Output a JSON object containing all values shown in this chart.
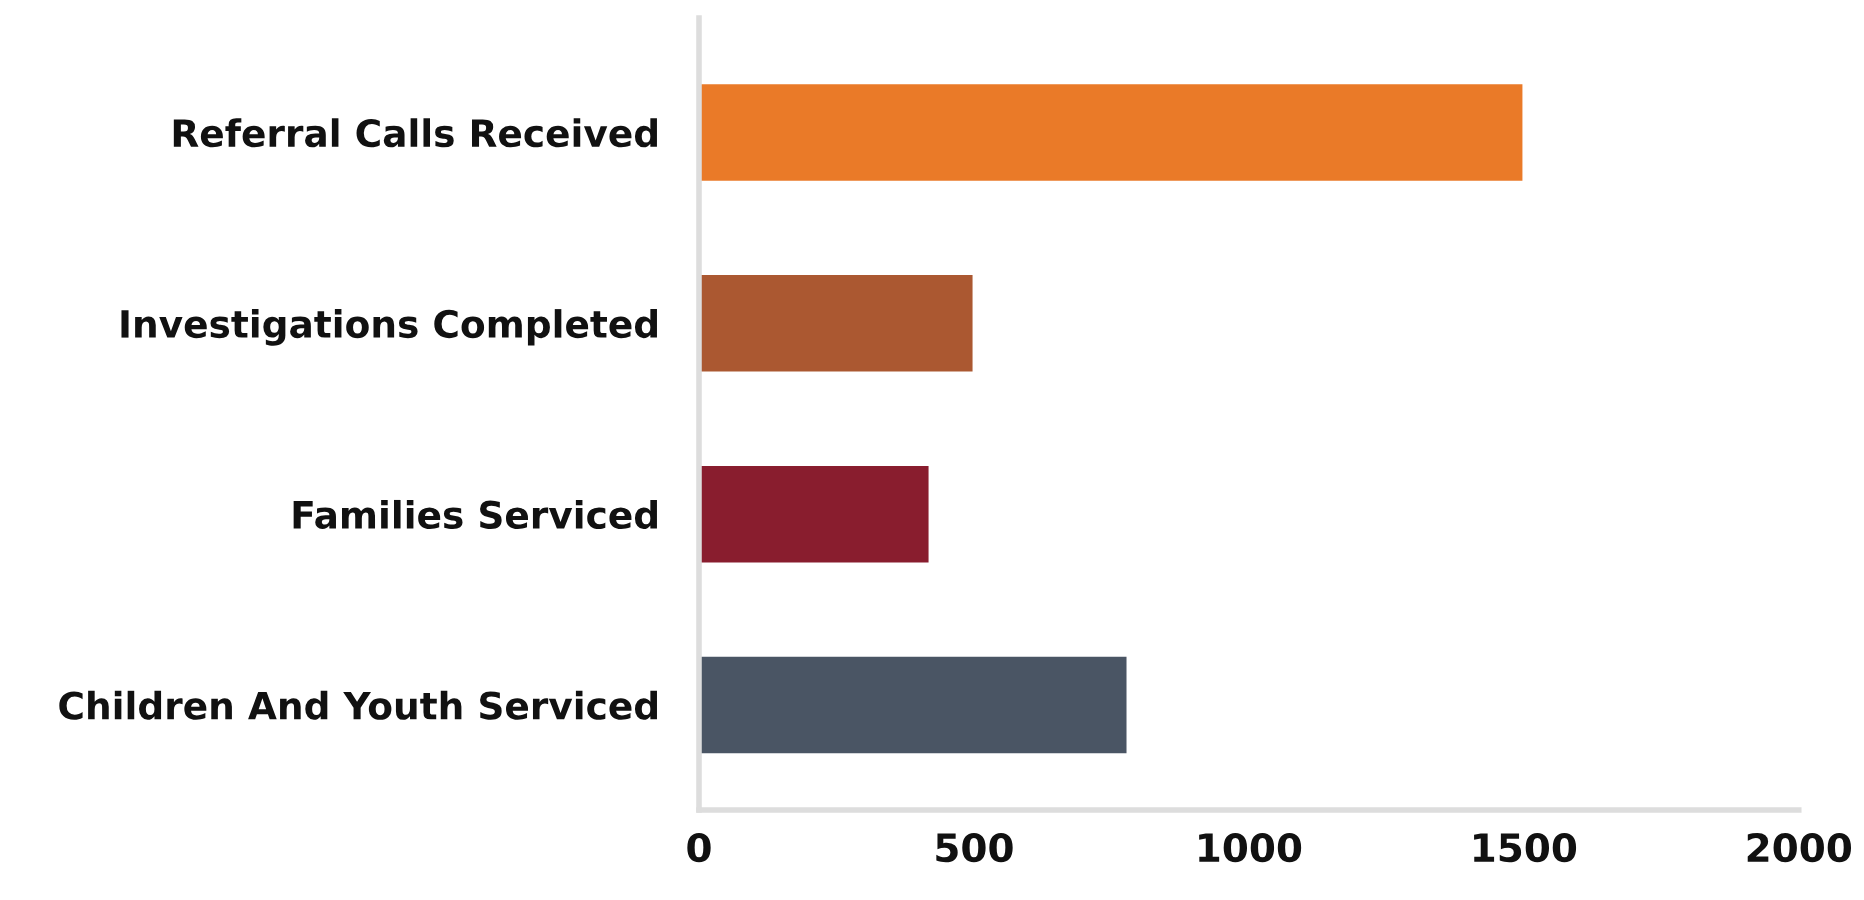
{
  "chart_data": {
    "type": "bar",
    "orientation": "horizontal",
    "categories": [
      "Referral Calls Received",
      "Investigations Completed",
      "Families Serviced",
      "Children And Youth Serviced"
    ],
    "values": [
      1500,
      500,
      420,
      780
    ],
    "colors": [
      "#ea7a28",
      "#ab5831",
      "#891d2e",
      "#4a5564"
    ],
    "xlim": [
      0,
      2000
    ],
    "xticks": [
      0,
      500,
      1000,
      1500,
      2000
    ],
    "grid": false
  }
}
